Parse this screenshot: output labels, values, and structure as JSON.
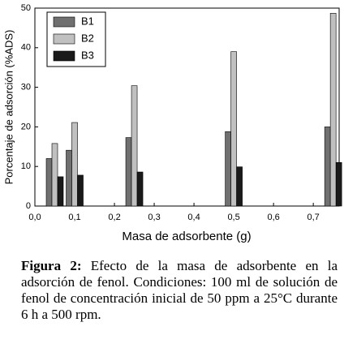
{
  "chart_data": {
    "type": "bar",
    "x_label": "Masa de adsorbente (g)",
    "y_label": "Porcentaje de adsorción (%ADS)",
    "x": [
      0.05,
      0.1,
      0.25,
      0.5,
      0.75
    ],
    "series": [
      {
        "name": "B1",
        "color": "#707070",
        "values": [
          12,
          14.1,
          17.3,
          18.8,
          20
        ]
      },
      {
        "name": "B2",
        "color": "#c0c0c0",
        "values": [
          15.8,
          21.1,
          30.4,
          39,
          48.7
        ]
      },
      {
        "name": "B3",
        "color": "#1a1a1a",
        "values": [
          7.4,
          7.8,
          8.6,
          9.9,
          11
        ]
      }
    ],
    "xlim": [
      0,
      0.765
    ],
    "xticks": [
      {
        "value": 0,
        "label": "0,0"
      },
      {
        "value": 0.1,
        "label": "0,1"
      },
      {
        "value": 0.2,
        "label": "0,2"
      },
      {
        "value": 0.3,
        "label": "0,3"
      },
      {
        "value": 0.4,
        "label": "0,4"
      },
      {
        "value": 0.5,
        "label": "0,5"
      },
      {
        "value": 0.6,
        "label": "0,6"
      },
      {
        "value": 0.7,
        "label": "0,7"
      }
    ],
    "ylim": [
      0,
      50
    ],
    "yticks": [
      0,
      10,
      20,
      30,
      40,
      50
    ],
    "grid": false,
    "legend": "upper-left"
  },
  "caption": {
    "label": "Figura 2:",
    "text": "Efecto de la masa de adsorbente en la adsorción de fenol. Condiciones: 100 ml de solución de fenol de concentración inicial de 50 ppm a 25°C durante 6 h a 500 rpm."
  }
}
